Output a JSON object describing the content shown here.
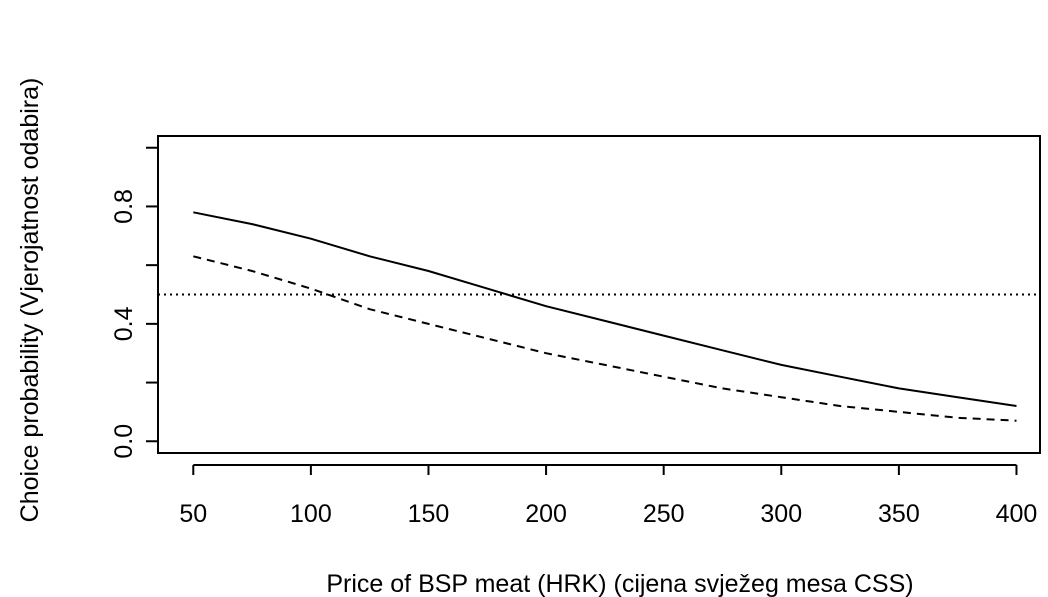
{
  "chart_data": {
    "type": "line",
    "title": "",
    "xlabel": "Price of BSP meat (HRK) (cijena svježeg mesa CSS)",
    "ylabel": "Choice probability (Vjerojatnost odabira)",
    "xlim": [
      35,
      410
    ],
    "ylim": [
      -0.04,
      1.04
    ],
    "x_ticks": [
      50,
      100,
      150,
      200,
      250,
      300,
      350,
      400
    ],
    "x_tick_labels": [
      "50",
      "100",
      "150",
      "200",
      "250",
      "300",
      "350",
      "400"
    ],
    "y_ticks": [
      0.0,
      0.2,
      0.4,
      0.6,
      0.8,
      1.0
    ],
    "y_tick_labels": [
      "0.0",
      "",
      "0.4",
      "",
      "0.8",
      ""
    ],
    "grid": false,
    "legend": "none",
    "x": [
      50,
      75,
      100,
      125,
      150,
      175,
      200,
      225,
      250,
      275,
      300,
      325,
      350,
      375,
      400
    ],
    "series": [
      {
        "style": "solid",
        "values": [
          0.78,
          0.74,
          0.69,
          0.63,
          0.58,
          0.52,
          0.46,
          0.41,
          0.36,
          0.31,
          0.26,
          0.22,
          0.18,
          0.15,
          0.12
        ]
      },
      {
        "style": "dashed",
        "values": [
          0.63,
          0.58,
          0.52,
          0.45,
          0.4,
          0.35,
          0.3,
          0.26,
          0.22,
          0.18,
          0.15,
          0.12,
          0.1,
          0.08,
          0.07
        ]
      }
    ],
    "reference_lines": [
      {
        "orientation": "horizontal",
        "y": 0.5,
        "style": "dotted"
      }
    ]
  }
}
